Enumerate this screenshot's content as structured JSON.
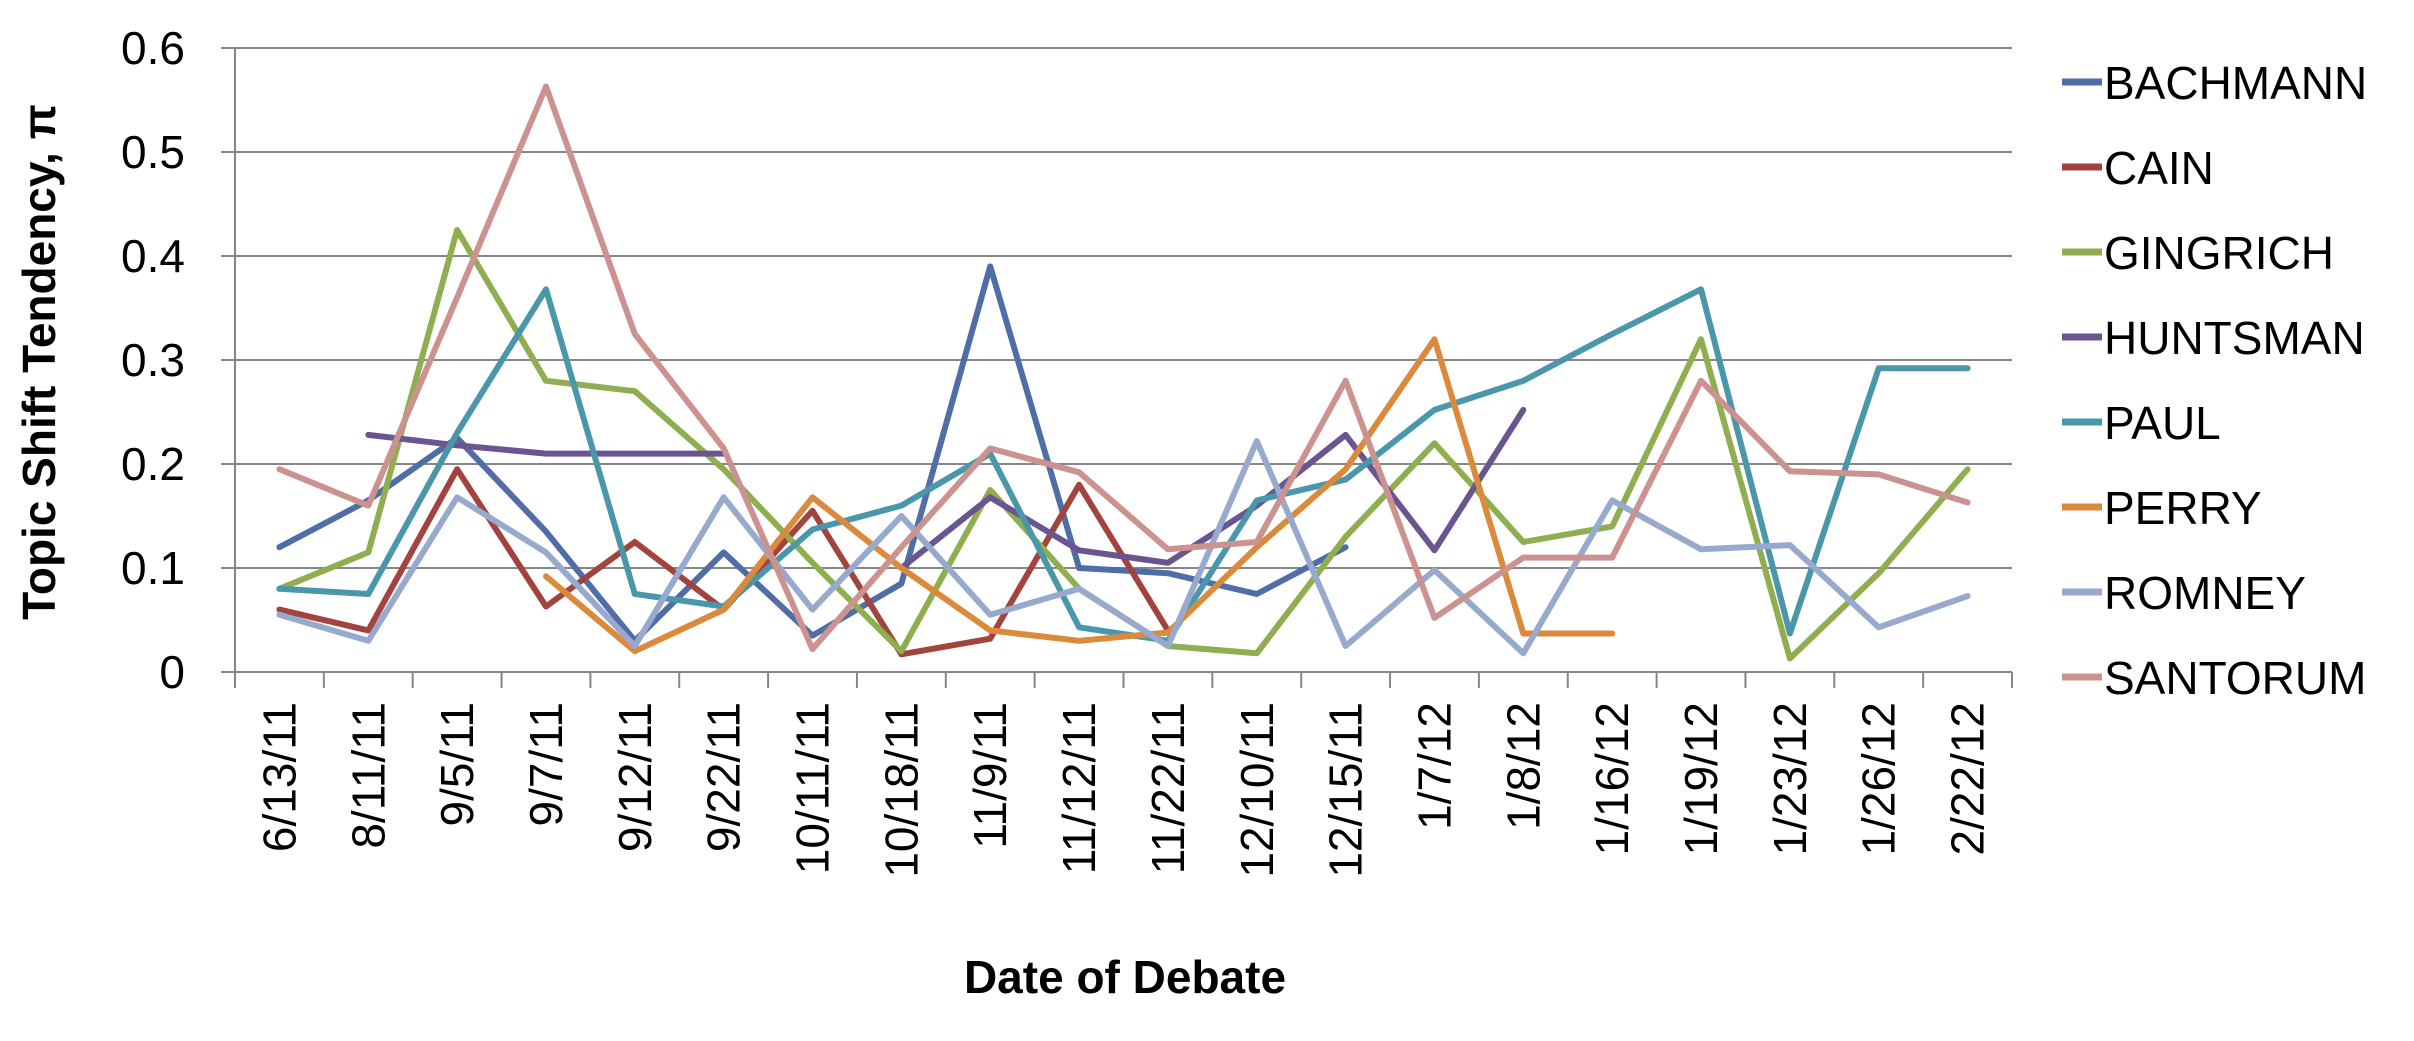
{
  "chart_data": {
    "type": "line",
    "title": "",
    "xlabel": "Date of Debate",
    "ylabel": "Topic Shift Tendency, π",
    "ylim": [
      0,
      0.6
    ],
    "yticks": [
      0,
      0.1,
      0.2,
      0.3,
      0.4,
      0.5,
      0.6
    ],
    "ytick_labels": [
      "0",
      "0.1",
      "0.2",
      "0.3",
      "0.4",
      "0.5",
      "0.6"
    ],
    "grid": true,
    "legend_position": "right",
    "categories": [
      "6/13/11",
      "8/11/11",
      "9/5/11",
      "9/7/11",
      "9/12/11",
      "9/22/11",
      "10/11/11",
      "10/18/11",
      "11/9/11",
      "11/12/11",
      "11/22/11",
      "12/10/11",
      "12/15/11",
      "1/7/12",
      "1/8/12",
      "1/16/12",
      "1/19/12",
      "1/23/12",
      "1/26/12",
      "2/22/12"
    ],
    "series": [
      {
        "name": "BACHMANN",
        "color": "#4F6EA8",
        "values": [
          0.12,
          0.165,
          0.225,
          0.135,
          0.03,
          0.115,
          0.035,
          0.085,
          0.39,
          0.1,
          0.095,
          0.075,
          0.12,
          null,
          null,
          null,
          null,
          null,
          null,
          null
        ]
      },
      {
        "name": "CAIN",
        "color": "#A2433F",
        "values": [
          0.06,
          0.04,
          0.195,
          0.063,
          0.125,
          0.06,
          0.155,
          0.017,
          0.032,
          0.18,
          0.04,
          null,
          null,
          null,
          null,
          null,
          null,
          null,
          null,
          null
        ]
      },
      {
        "name": "GINGRICH",
        "color": "#8FAE4F",
        "values": [
          0.08,
          0.115,
          0.425,
          0.28,
          0.27,
          0.195,
          0.105,
          0.02,
          0.175,
          0.08,
          0.025,
          0.018,
          0.13,
          0.22,
          0.125,
          0.14,
          0.32,
          0.013,
          0.095,
          0.195
        ]
      },
      {
        "name": "HUNTSMAN",
        "color": "#6A5590",
        "values": [
          null,
          0.228,
          0.218,
          0.21,
          0.21,
          0.21,
          null,
          0.1,
          0.168,
          0.117,
          0.105,
          0.16,
          0.228,
          0.117,
          0.252,
          null,
          null,
          null,
          null,
          null
        ]
      },
      {
        "name": "PAUL",
        "color": "#4A97AC",
        "values": [
          0.08,
          0.075,
          0.23,
          0.368,
          0.075,
          0.063,
          0.137,
          0.16,
          0.21,
          0.043,
          0.03,
          0.165,
          0.185,
          0.252,
          0.28,
          0.325,
          0.368,
          0.037,
          0.292,
          0.292
        ]
      },
      {
        "name": "PERRY",
        "color": "#DB8A3C",
        "values": [
          null,
          null,
          null,
          0.092,
          0.02,
          0.06,
          0.168,
          0.1,
          0.04,
          0.03,
          0.038,
          0.12,
          0.195,
          0.32,
          0.037,
          0.037,
          null,
          null,
          null,
          null
        ]
      },
      {
        "name": "ROMNEY",
        "color": "#98A9CE",
        "values": [
          0.055,
          0.03,
          0.168,
          0.115,
          0.025,
          0.168,
          0.06,
          0.15,
          0.055,
          0.08,
          0.025,
          0.222,
          0.025,
          0.098,
          0.018,
          0.165,
          0.118,
          0.122,
          0.043,
          0.073
        ]
      },
      {
        "name": "SANTORUM",
        "color": "#CC9290",
        "values": [
          0.195,
          0.16,
          0.36,
          0.563,
          0.325,
          0.215,
          0.022,
          0.12,
          0.215,
          0.192,
          0.118,
          0.125,
          0.28,
          0.052,
          0.11,
          0.11,
          0.28,
          0.193,
          0.19,
          0.163
        ]
      }
    ]
  }
}
